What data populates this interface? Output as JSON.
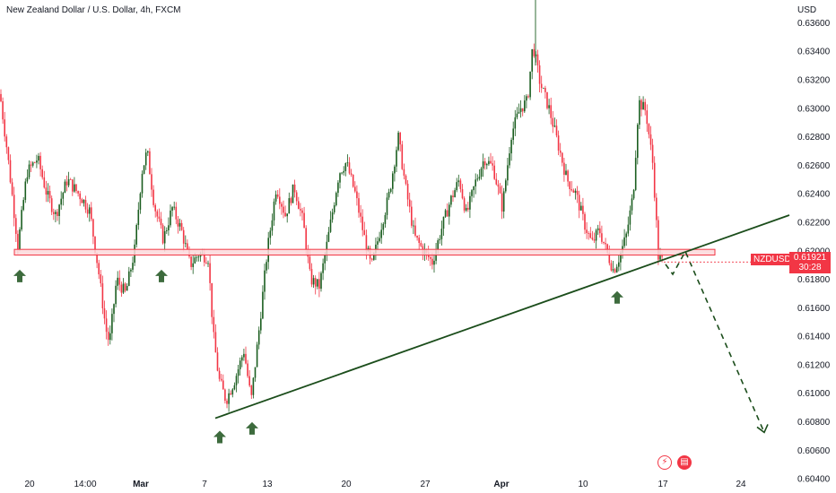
{
  "header": {
    "title": "New Zealand Dollar / U.S. Dollar, 4h, FXCM"
  },
  "symbol_badge": {
    "symbol": "NZDUSD",
    "price": "0.61921",
    "countdown": "30:28"
  },
  "event_icons": [
    {
      "name": "flash-icon",
      "glyph": "⚡"
    },
    {
      "name": "us-flag-icon",
      "glyph": "▤"
    }
  ],
  "colors": {
    "up": "#1b5e20",
    "down": "#f23645",
    "zone_fill": "#fbd8db",
    "zone_stroke": "#f23645",
    "trendline": "#1b4d1b",
    "arrow": "#3d6b3d",
    "axis_text": "#131722"
  },
  "chart_data": {
    "type": "candlestick",
    "title": "New Zealand Dollar / U.S. Dollar, 4h, FXCM",
    "y_axis": {
      "currency": "USD",
      "range": [
        0.603,
        0.6376
      ],
      "ticks": [
        "0.63600",
        "0.63400",
        "0.63200",
        "0.63000",
        "0.62800",
        "0.62600",
        "0.62400",
        "0.62200",
        "0.62000",
        "0.61800",
        "0.61600",
        "0.61400",
        "0.61200",
        "0.61000",
        "0.60800",
        "0.60600",
        "0.60400"
      ]
    },
    "x_axis": {
      "ticks": [
        {
          "label": "20",
          "bold": false
        },
        {
          "label": "14:00",
          "bold": false
        },
        {
          "label": "Mar",
          "bold": true
        },
        {
          "label": "7",
          "bold": false
        },
        {
          "label": "13",
          "bold": false
        },
        {
          "label": "20",
          "bold": false
        },
        {
          "label": "27",
          "bold": false
        },
        {
          "label": "Apr",
          "bold": true
        },
        {
          "label": "10",
          "bold": false
        },
        {
          "label": "17",
          "bold": false
        },
        {
          "label": "24",
          "bold": false
        }
      ]
    },
    "price_path": [
      [
        0,
        0.631
      ],
      [
        8,
        0.627
      ],
      [
        20,
        0.6203
      ],
      [
        30,
        0.6255
      ],
      [
        42,
        0.6265
      ],
      [
        52,
        0.624
      ],
      [
        62,
        0.6225
      ],
      [
        75,
        0.625
      ],
      [
        90,
        0.6238
      ],
      [
        100,
        0.6228
      ],
      [
        110,
        0.6185
      ],
      [
        118,
        0.6145
      ],
      [
        122,
        0.6135
      ],
      [
        130,
        0.618
      ],
      [
        140,
        0.617
      ],
      [
        150,
        0.62
      ],
      [
        158,
        0.6255
      ],
      [
        164,
        0.627
      ],
      [
        172,
        0.6232
      ],
      [
        182,
        0.6208
      ],
      [
        192,
        0.623
      ],
      [
        202,
        0.6215
      ],
      [
        212,
        0.619
      ],
      [
        222,
        0.6198
      ],
      [
        232,
        0.6195
      ],
      [
        238,
        0.614
      ],
      [
        244,
        0.611
      ],
      [
        252,
        0.6095
      ],
      [
        262,
        0.611
      ],
      [
        272,
        0.613
      ],
      [
        280,
        0.6095
      ],
      [
        288,
        0.614
      ],
      [
        298,
        0.62
      ],
      [
        308,
        0.6245
      ],
      [
        318,
        0.6225
      ],
      [
        328,
        0.6245
      ],
      [
        338,
        0.622
      ],
      [
        346,
        0.618
      ],
      [
        356,
        0.6175
      ],
      [
        366,
        0.621
      ],
      [
        378,
        0.6255
      ],
      [
        386,
        0.6262
      ],
      [
        396,
        0.624
      ],
      [
        406,
        0.621
      ],
      [
        414,
        0.6188
      ],
      [
        424,
        0.6215
      ],
      [
        434,
        0.624
      ],
      [
        444,
        0.628
      ],
      [
        452,
        0.6245
      ],
      [
        462,
        0.621
      ],
      [
        472,
        0.62
      ],
      [
        482,
        0.6192
      ],
      [
        492,
        0.6215
      ],
      [
        502,
        0.6235
      ],
      [
        512,
        0.625
      ],
      [
        520,
        0.6225
      ],
      [
        530,
        0.6248
      ],
      [
        540,
        0.6265
      ],
      [
        550,
        0.6258
      ],
      [
        560,
        0.623
      ],
      [
        570,
        0.6282
      ],
      [
        580,
        0.63
      ],
      [
        588,
        0.6305
      ],
      [
        594,
        0.6345
      ],
      [
        602,
        0.6318
      ],
      [
        612,
        0.63
      ],
      [
        622,
        0.6275
      ],
      [
        632,
        0.625
      ],
      [
        642,
        0.624
      ],
      [
        652,
        0.6218
      ],
      [
        660,
        0.6205
      ],
      [
        668,
        0.6215
      ],
      [
        676,
        0.62
      ],
      [
        684,
        0.6186
      ],
      [
        690,
        0.6195
      ],
      [
        698,
        0.621
      ],
      [
        706,
        0.624
      ],
      [
        712,
        0.6305
      ],
      [
        720,
        0.6298
      ],
      [
        728,
        0.626
      ],
      [
        734,
        0.6195
      ],
      [
        740,
        0.6192
      ]
    ],
    "resistance_zone": {
      "low": 0.6197,
      "high": 0.6201
    },
    "trendline": {
      "from": [
        240,
        0.60825
      ],
      "to": [
        880,
        0.6225
      ]
    },
    "projection": [
      [
        742,
        0.61905
      ],
      [
        750,
        0.61835
      ],
      [
        764,
        0.61995
      ],
      [
        852,
        0.60725
      ]
    ],
    "support_arrows": [
      {
        "at": 22,
        "price": 0.6188
      },
      {
        "at": 180,
        "price": 0.6188
      },
      {
        "at": 245,
        "price": 0.6075
      },
      {
        "at": 281,
        "price": 0.6081
      },
      {
        "at": 688,
        "price": 0.6173
      }
    ],
    "last_price": 0.61921
  }
}
